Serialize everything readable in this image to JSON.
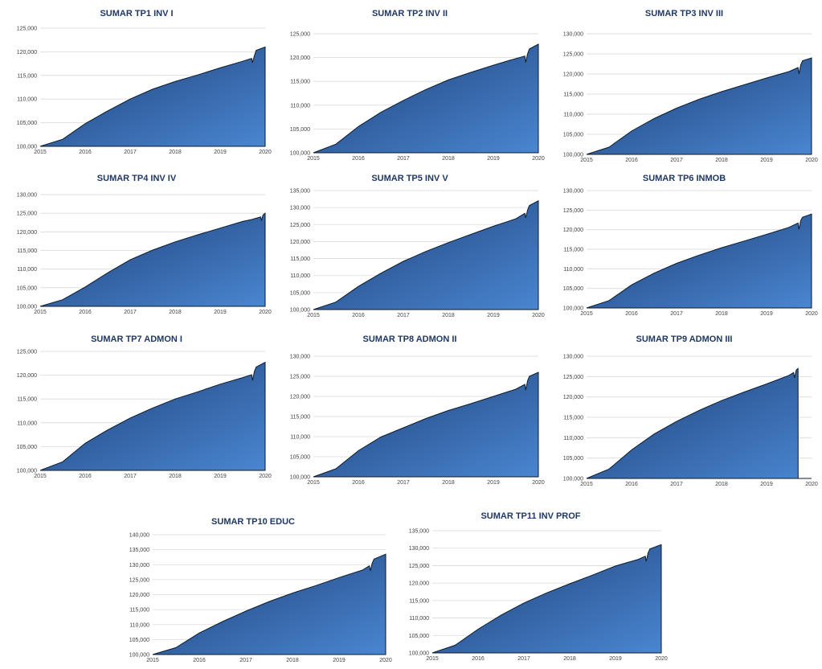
{
  "chart_data": [
    {
      "type": "area",
      "title": "SUMAR TP1 INV I",
      "ylim": [
        100000,
        125000
      ],
      "yticks": [
        "100,000",
        "105,000",
        "110,000",
        "115,000",
        "120,000",
        "125,000"
      ],
      "xticks": [
        "2015",
        "2016",
        "2017",
        "2018",
        "2019",
        "2020"
      ],
      "x": [
        2015.0,
        2015.5,
        2016.0,
        2016.5,
        2017.0,
        2017.5,
        2018.0,
        2018.5,
        2019.0,
        2019.5,
        2019.7,
        2019.72,
        2019.76,
        2019.8,
        2020.0
      ],
      "values": [
        100000,
        101500,
        104800,
        107500,
        110000,
        112100,
        113700,
        115100,
        116600,
        118000,
        118600,
        117700,
        119200,
        120300,
        121000
      ]
    },
    {
      "type": "area",
      "title": "SUMAR TP2 INV II",
      "ylim": [
        100000,
        125000
      ],
      "yticks": [
        "100,000",
        "105,000",
        "110,000",
        "115,000",
        "120,000",
        "125,000"
      ],
      "xticks": [
        "2015",
        "2016",
        "2017",
        "2018",
        "2019",
        "2020"
      ],
      "x": [
        2015.0,
        2015.5,
        2016.0,
        2016.5,
        2017.0,
        2017.5,
        2018.0,
        2018.5,
        2019.0,
        2019.5,
        2019.7,
        2019.72,
        2019.76,
        2019.8,
        2020.0
      ],
      "values": [
        100000,
        101800,
        105500,
        108500,
        111000,
        113300,
        115300,
        116900,
        118400,
        119800,
        120300,
        119000,
        120800,
        121800,
        122800
      ]
    },
    {
      "type": "area",
      "title": "SUMAR TP3 INV III",
      "ylim": [
        100000,
        130000
      ],
      "yticks": [
        "100,000",
        "105,000",
        "110,000",
        "115,000",
        "120,000",
        "125,000",
        "130,000"
      ],
      "xticks": [
        "2015",
        "2016",
        "2017",
        "2018",
        "2019",
        "2020"
      ],
      "x": [
        2015.0,
        2015.5,
        2016.0,
        2016.5,
        2017.0,
        2017.5,
        2018.0,
        2018.5,
        2019.0,
        2019.5,
        2019.7,
        2019.72,
        2019.76,
        2019.8,
        2020.0
      ],
      "values": [
        100000,
        101800,
        105800,
        108900,
        111500,
        113700,
        115600,
        117300,
        119000,
        120600,
        121600,
        120000,
        122300,
        123300,
        124000
      ]
    },
    {
      "type": "area",
      "title": "SUMAR TP4 INV IV",
      "ylim": [
        100000,
        130000
      ],
      "yticks": [
        "100,000",
        "105,000",
        "110,000",
        "115,000",
        "120,000",
        "125,000",
        "130,000"
      ],
      "xticks": [
        "2015",
        "2016",
        "2017",
        "2018",
        "2019",
        "2020"
      ],
      "x": [
        2015.0,
        2015.5,
        2016.0,
        2016.5,
        2017.0,
        2017.5,
        2018.0,
        2018.5,
        2019.0,
        2019.5,
        2019.7,
        2019.9,
        2019.92,
        2019.95,
        2020.0
      ],
      "values": [
        100000,
        101800,
        105200,
        109000,
        112500,
        115100,
        117300,
        119200,
        121000,
        122800,
        123300,
        124000,
        123000,
        124500,
        125000
      ]
    },
    {
      "type": "area",
      "title": "SUMAR TP5 INV V",
      "ylim": [
        100000,
        135000
      ],
      "yticks": [
        "100,000",
        "105,000",
        "110,000",
        "115,000",
        "120,000",
        "125,000",
        "130,000",
        "135,000"
      ],
      "xticks": [
        "2015",
        "2016",
        "2017",
        "2018",
        "2019",
        "2020"
      ],
      "x": [
        2015.0,
        2015.5,
        2016.0,
        2016.5,
        2017.0,
        2017.5,
        2018.0,
        2018.5,
        2019.0,
        2019.5,
        2019.7,
        2019.72,
        2019.76,
        2019.8,
        2020.0
      ],
      "values": [
        100000,
        102200,
        106800,
        110700,
        114200,
        117100,
        119700,
        122100,
        124500,
        126700,
        128300,
        127000,
        129300,
        130600,
        132000
      ]
    },
    {
      "type": "area",
      "title": "SUMAR TP6 INMOB",
      "ylim": [
        100000,
        130000
      ],
      "yticks": [
        "100,000",
        "105,000",
        "110,000",
        "115,000",
        "120,000",
        "125,000",
        "130,000"
      ],
      "xticks": [
        "2015",
        "2016",
        "2017",
        "2018",
        "2019",
        "2020"
      ],
      "x": [
        2015.0,
        2015.5,
        2016.0,
        2016.5,
        2017.0,
        2017.5,
        2018.0,
        2018.5,
        2019.0,
        2019.5,
        2019.7,
        2019.72,
        2019.76,
        2019.8,
        2020.0
      ],
      "values": [
        100000,
        101900,
        105900,
        108900,
        111400,
        113500,
        115400,
        117100,
        118800,
        120600,
        121700,
        120100,
        122400,
        123200,
        124000
      ]
    },
    {
      "type": "area",
      "title": "SUMAR TP7 ADMON I",
      "ylim": [
        100000,
        125000
      ],
      "yticks": [
        "100,000",
        "105,000",
        "110,000",
        "115,000",
        "120,000",
        "125,000"
      ],
      "xticks": [
        "2015",
        "2016",
        "2017",
        "2018",
        "2019",
        "2020"
      ],
      "x": [
        2015.0,
        2015.5,
        2016.0,
        2016.5,
        2017.0,
        2017.5,
        2018.0,
        2018.5,
        2019.0,
        2019.5,
        2019.7,
        2019.72,
        2019.76,
        2019.8,
        2020.0
      ],
      "values": [
        100000,
        101800,
        105700,
        108500,
        111000,
        113100,
        115000,
        116500,
        118100,
        119500,
        120100,
        118900,
        120800,
        121700,
        122700
      ]
    },
    {
      "type": "area",
      "title": "SUMAR TP8 ADMON II",
      "ylim": [
        100000,
        130000
      ],
      "yticks": [
        "100,000",
        "105,000",
        "110,000",
        "115,000",
        "120,000",
        "125,000",
        "130,000"
      ],
      "xticks": [
        "2015",
        "2016",
        "2017",
        "2018",
        "2019",
        "2020"
      ],
      "x": [
        2015.0,
        2015.5,
        2016.0,
        2016.5,
        2017.0,
        2017.5,
        2018.0,
        2018.5,
        2019.0,
        2019.5,
        2019.7,
        2019.72,
        2019.76,
        2019.8,
        2020.0
      ],
      "values": [
        100000,
        102000,
        106500,
        109900,
        112200,
        114500,
        116500,
        118200,
        120000,
        121800,
        123000,
        121600,
        123900,
        125000,
        126000
      ]
    },
    {
      "type": "area",
      "title": "SUMAR TP9 ADMON III",
      "ylim": [
        100000,
        130000
      ],
      "yticks": [
        "100,000",
        "105,000",
        "110,000",
        "115,000",
        "120,000",
        "125,000",
        "130,000"
      ],
      "xticks": [
        "2015",
        "2016",
        "2017",
        "2018",
        "2019",
        "2020"
      ],
      "x": [
        2015.0,
        2015.5,
        2016.0,
        2016.5,
        2017.0,
        2017.5,
        2018.0,
        2018.5,
        2019.0,
        2019.5,
        2019.6,
        2019.62,
        2019.66,
        2019.7,
        2019.701,
        2020.0
      ],
      "values": [
        100000,
        102300,
        107000,
        110900,
        114000,
        116700,
        119100,
        121200,
        123200,
        125300,
        126000,
        124700,
        126600,
        127000,
        100000,
        100000
      ]
    },
    {
      "type": "area",
      "title": "SUMAR TP10 EDUC",
      "ylim": [
        100000,
        140000
      ],
      "yticks": [
        "100,000",
        "105,000",
        "110,000",
        "115,000",
        "120,000",
        "125,000",
        "130,000",
        "135,000",
        "140,000"
      ],
      "xticks": [
        "2015",
        "2016",
        "2017",
        "2018",
        "2019",
        "2020"
      ],
      "x": [
        2015.0,
        2015.5,
        2016.0,
        2016.5,
        2017.0,
        2017.5,
        2018.0,
        2018.5,
        2019.0,
        2019.5,
        2019.65,
        2019.67,
        2019.71,
        2019.75,
        2020.0
      ],
      "values": [
        100000,
        102300,
        107200,
        111000,
        114500,
        117700,
        120500,
        123000,
        125700,
        128200,
        129600,
        128000,
        130500,
        131900,
        133500
      ]
    },
    {
      "type": "area",
      "title": "SUMAR TP11 INV PROF",
      "ylim": [
        100000,
        135000
      ],
      "yticks": [
        "100,000",
        "105,000",
        "110,000",
        "115,000",
        "120,000",
        "125,000",
        "130,000",
        "135,000"
      ],
      "xticks": [
        "2015",
        "2016",
        "2017",
        "2018",
        "2019",
        "2020"
      ],
      "x": [
        2015.0,
        2015.5,
        2016.0,
        2016.5,
        2017.0,
        2017.5,
        2018.0,
        2018.5,
        2019.0,
        2019.5,
        2019.65,
        2019.67,
        2019.71,
        2019.75,
        2020.0
      ],
      "values": [
        100000,
        102200,
        106800,
        110800,
        114300,
        117200,
        119800,
        122300,
        124900,
        126800,
        127700,
        126200,
        128600,
        129800,
        131000
      ]
    }
  ]
}
